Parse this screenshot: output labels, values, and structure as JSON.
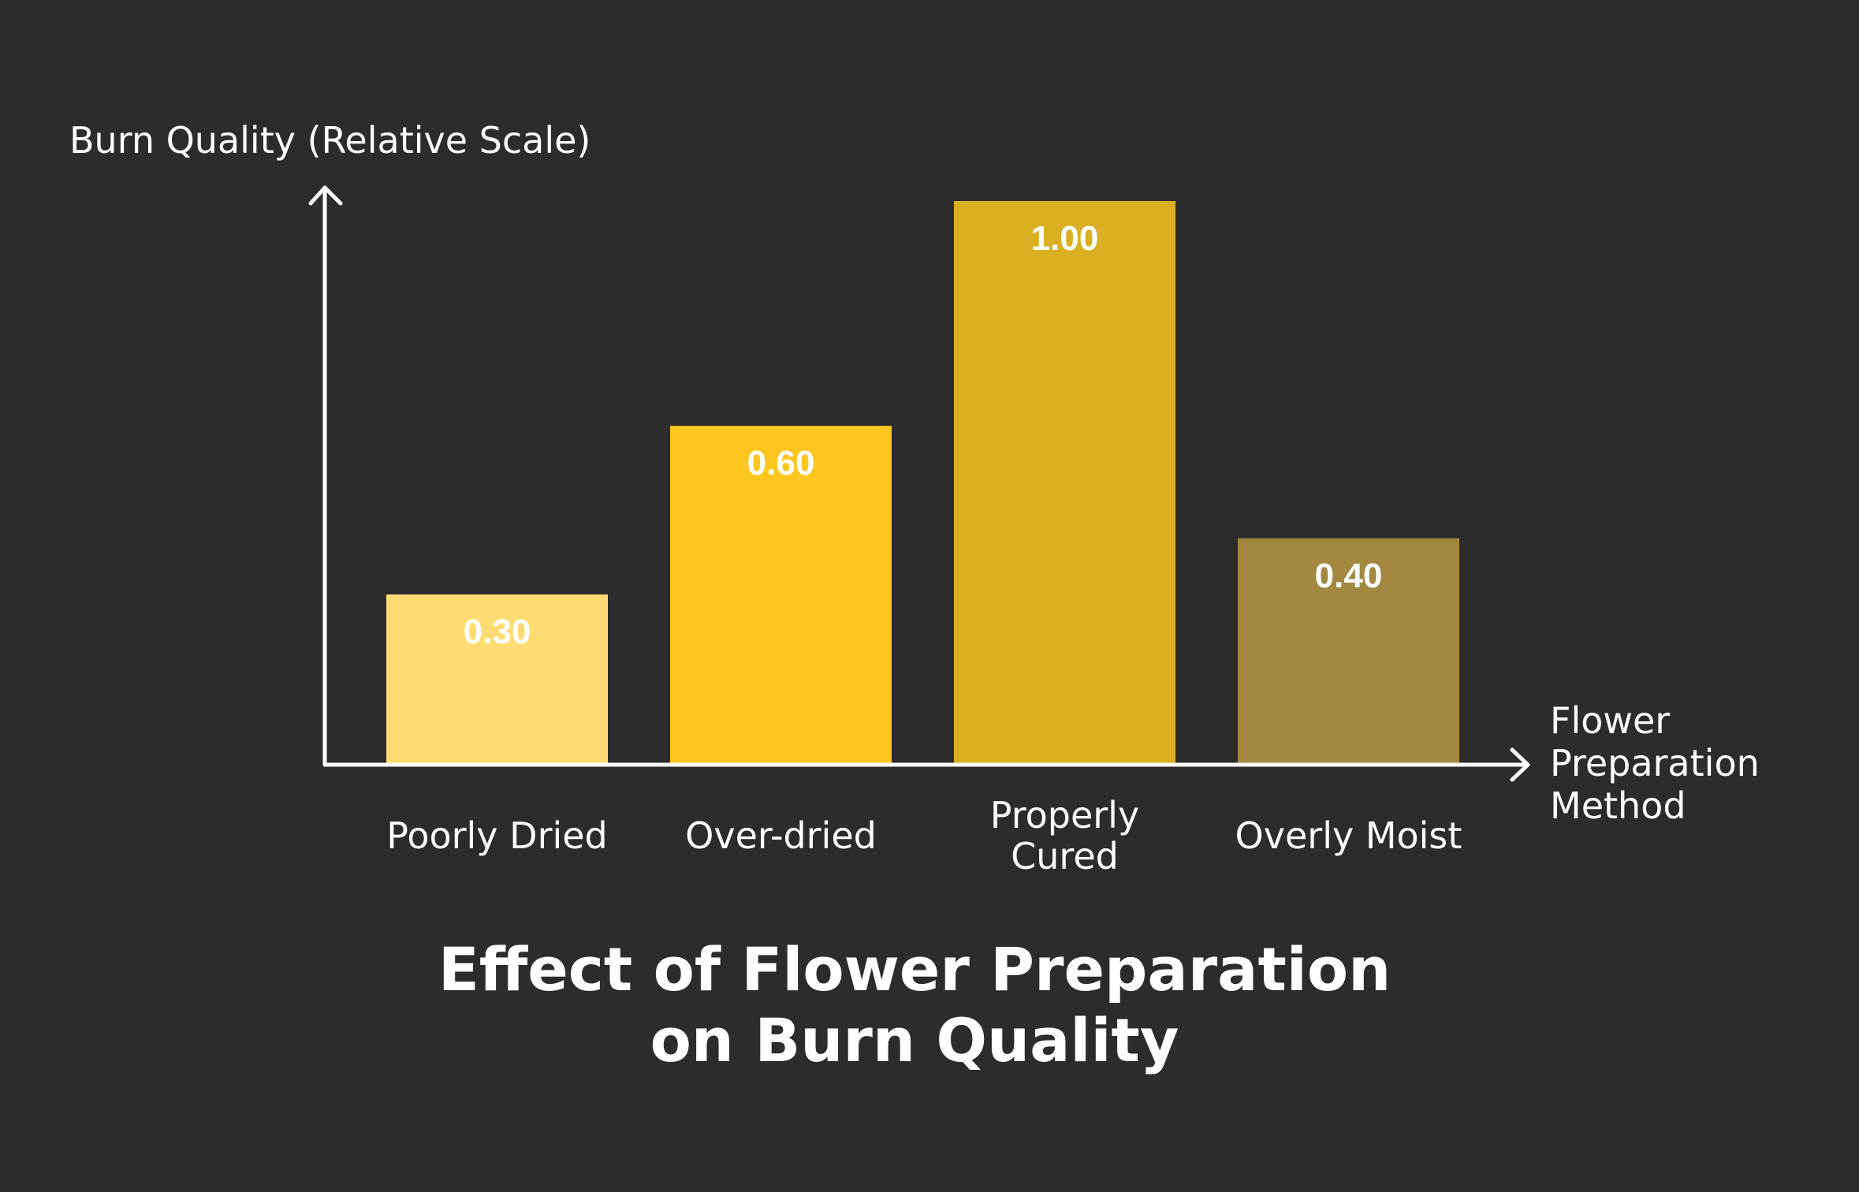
{
  "chart_data": {
    "type": "bar",
    "title_lines": [
      "Effect of Flower Preparation",
      "on Burn Quality"
    ],
    "ylabel": "Burn Quality (Relative Scale)",
    "xlabel_lines": [
      "Flower",
      "Preparation",
      "Method"
    ],
    "categories": [
      [
        "Poorly Dried"
      ],
      [
        "Over-dried"
      ],
      [
        "Properly",
        "Cured"
      ],
      [
        "Overly Moist"
      ]
    ],
    "values": [
      0.3,
      0.6,
      1.0,
      0.4
    ],
    "value_labels": [
      "0.30",
      "0.60",
      "1.00",
      "0.40"
    ],
    "colors": [
      "#ffdc73",
      "#ffc61f",
      "#dbaf22",
      "#a38841"
    ],
    "ylim": [
      0,
      1
    ],
    "grid": false,
    "axis_color": "#ffffff",
    "background_color": "#2c2c2c"
  }
}
